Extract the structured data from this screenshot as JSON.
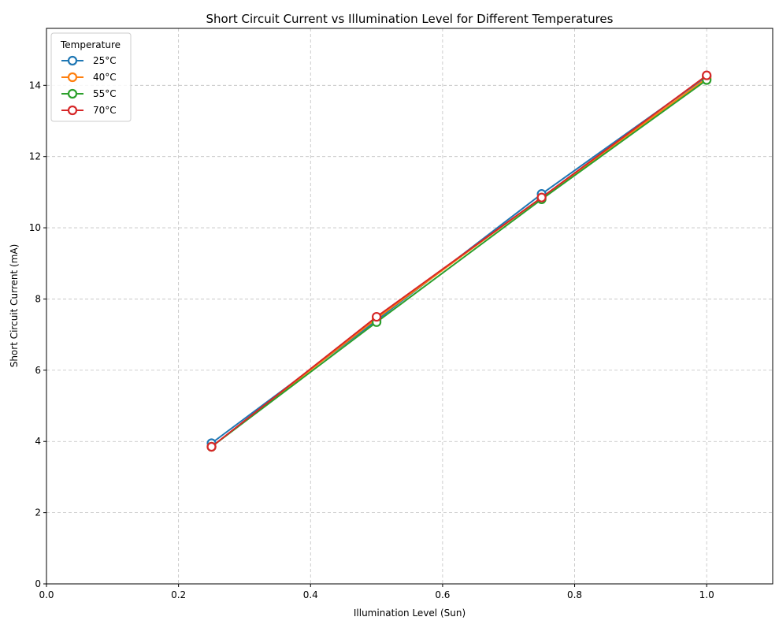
{
  "chart_data": {
    "type": "line",
    "title": "Short Circuit Current vs Illumination Level for Different Temperatures",
    "xlabel": "Illumination Level (Sun)",
    "ylabel": "Short Circuit Current (mA)",
    "xlim": [
      0.0,
      1.1
    ],
    "ylim": [
      0,
      15.6
    ],
    "xticks": [
      0.0,
      0.2,
      0.4,
      0.6,
      0.8,
      1.0
    ],
    "xtick_labels": [
      "0.0",
      "0.2",
      "0.4",
      "0.6",
      "0.8",
      "1.0"
    ],
    "yticks": [
      0,
      2,
      4,
      6,
      8,
      10,
      12,
      14
    ],
    "ytick_labels": [
      "0",
      "2",
      "4",
      "6",
      "8",
      "10",
      "12",
      "14"
    ],
    "grid": true,
    "legend": {
      "title": "Temperature",
      "placement": "top-left"
    },
    "x": [
      0.25,
      0.5,
      0.75,
      1.0
    ],
    "series": [
      {
        "name": "25°C",
        "color": "#1f77b4",
        "values": [
          3.95,
          7.4,
          10.95,
          14.25
        ]
      },
      {
        "name": "40°C",
        "color": "#ff7f0e",
        "values": [
          3.85,
          7.45,
          10.85,
          14.2
        ]
      },
      {
        "name": "55°C",
        "color": "#2ca02c",
        "values": [
          3.85,
          7.35,
          10.8,
          14.15
        ]
      },
      {
        "name": "70°C",
        "color": "#d62728",
        "values": [
          3.85,
          7.5,
          10.85,
          14.28
        ]
      }
    ]
  }
}
